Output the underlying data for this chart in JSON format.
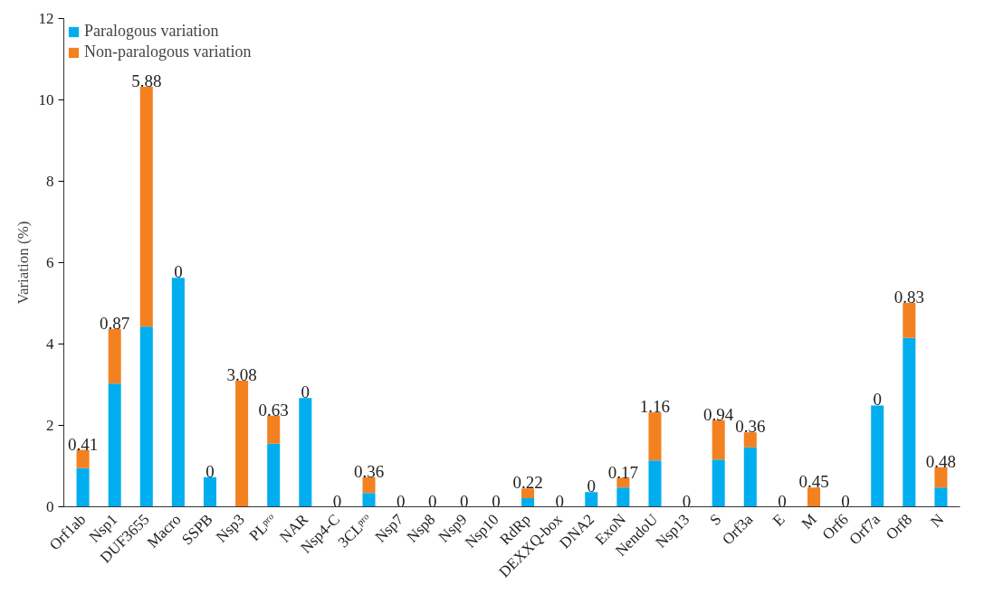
{
  "chart_data": {
    "type": "bar",
    "stacked": true,
    "ylabel": "Variation (%)",
    "categories": [
      "Orf1ab",
      "Nsp1",
      "DUF3655",
      "Macro",
      "SSPB",
      "Nsp3",
      "PLᵖʳᵒ",
      "NAR",
      "Nsp4-C",
      "3CLᵖʳᵒ",
      "Nsp7",
      "Nsp8",
      "Nsp9",
      "Nsp10",
      "RdRp",
      "DEXXQ-box",
      "DNA2",
      "ExoN",
      "NendoU",
      "Nsp13",
      "S",
      "Orf3a",
      "E",
      "M",
      "Orf6",
      "Orf7a",
      "Orf8",
      "N"
    ],
    "series": [
      {
        "name": "Paralogous variation",
        "color": "#00aeef",
        "values": [
          0.95,
          3.03,
          4.43,
          5.63,
          0.73,
          0,
          1.55,
          2.67,
          0,
          0.34,
          0,
          0,
          0,
          0,
          0.21,
          0,
          0.36,
          0.47,
          1.14,
          0,
          1.16,
          1.46,
          0,
          0,
          0,
          2.49,
          4.15,
          0.47
        ]
      },
      {
        "name": "Non-paralogous variation",
        "color": "#f38120",
        "values": [
          0.45,
          1.34,
          5.89,
          0,
          0,
          3.1,
          0.69,
          0,
          0,
          0.39,
          0,
          0,
          0,
          0,
          0.24,
          0,
          0,
          0.24,
          1.18,
          0,
          0.97,
          0.37,
          0,
          0.47,
          0,
          0,
          0.86,
          0.5
        ]
      }
    ],
    "annotations": [
      {
        "text": "0.41",
        "x": "Orf1ab",
        "y": 1.4
      },
      {
        "text": "0.87",
        "x": "Nsp1",
        "y": 4.37
      },
      {
        "text": "5.88",
        "x": "DUF3655",
        "y": 10.32
      },
      {
        "text": "0",
        "x": "Macro",
        "y": 5.63
      },
      {
        "text": "0",
        "x": "SSPB",
        "y": 0.73
      },
      {
        "text": "3.08",
        "x": "Nsp3",
        "y": 3.1
      },
      {
        "text": "0.63",
        "x": "PLᵖʳᵒ",
        "y": 2.24
      },
      {
        "text": "0",
        "x": "NAR",
        "y": 2.67
      },
      {
        "text": "0",
        "x": "Nsp4-C",
        "y": 0
      },
      {
        "text": "0.36",
        "x": "3CLᵖʳᵒ",
        "y": 0.73
      },
      {
        "text": "0",
        "x": "Nsp7",
        "y": 0
      },
      {
        "text": "0",
        "x": "Nsp8",
        "y": 0
      },
      {
        "text": "0",
        "x": "Nsp9",
        "y": 0
      },
      {
        "text": "0",
        "x": "Nsp10",
        "y": 0
      },
      {
        "text": "0.22",
        "x": "RdRp",
        "y": 0.45
      },
      {
        "text": "0",
        "x": "DEXXQ-box",
        "y": 0
      },
      {
        "text": "0",
        "x": "DNA2",
        "y": 0.36
      },
      {
        "text": "0.17",
        "x": "ExoN",
        "y": 0.71
      },
      {
        "text": "1.16",
        "x": "NendoU",
        "y": 2.32
      },
      {
        "text": "0",
        "x": "Nsp13",
        "y": 0
      },
      {
        "text": "0.94",
        "x": "S",
        "y": 2.13
      },
      {
        "text": "0.36",
        "x": "Orf3a",
        "y": 1.83
      },
      {
        "text": "0",
        "x": "E",
        "y": 0
      },
      {
        "text": "0.45",
        "x": "M",
        "y": 0.47
      },
      {
        "text": "0",
        "x": "Orf6",
        "y": 0
      },
      {
        "text": "0",
        "x": "Orf7a",
        "y": 2.49
      },
      {
        "text": "0.83",
        "x": "Orf8",
        "y": 5.01
      },
      {
        "text": "0.48",
        "x": "N",
        "y": 0.97
      }
    ],
    "ylim": [
      0,
      12
    ],
    "yticks": [
      0,
      2,
      4,
      6,
      8,
      10,
      12
    ],
    "grid": false,
    "legend": "top left"
  }
}
